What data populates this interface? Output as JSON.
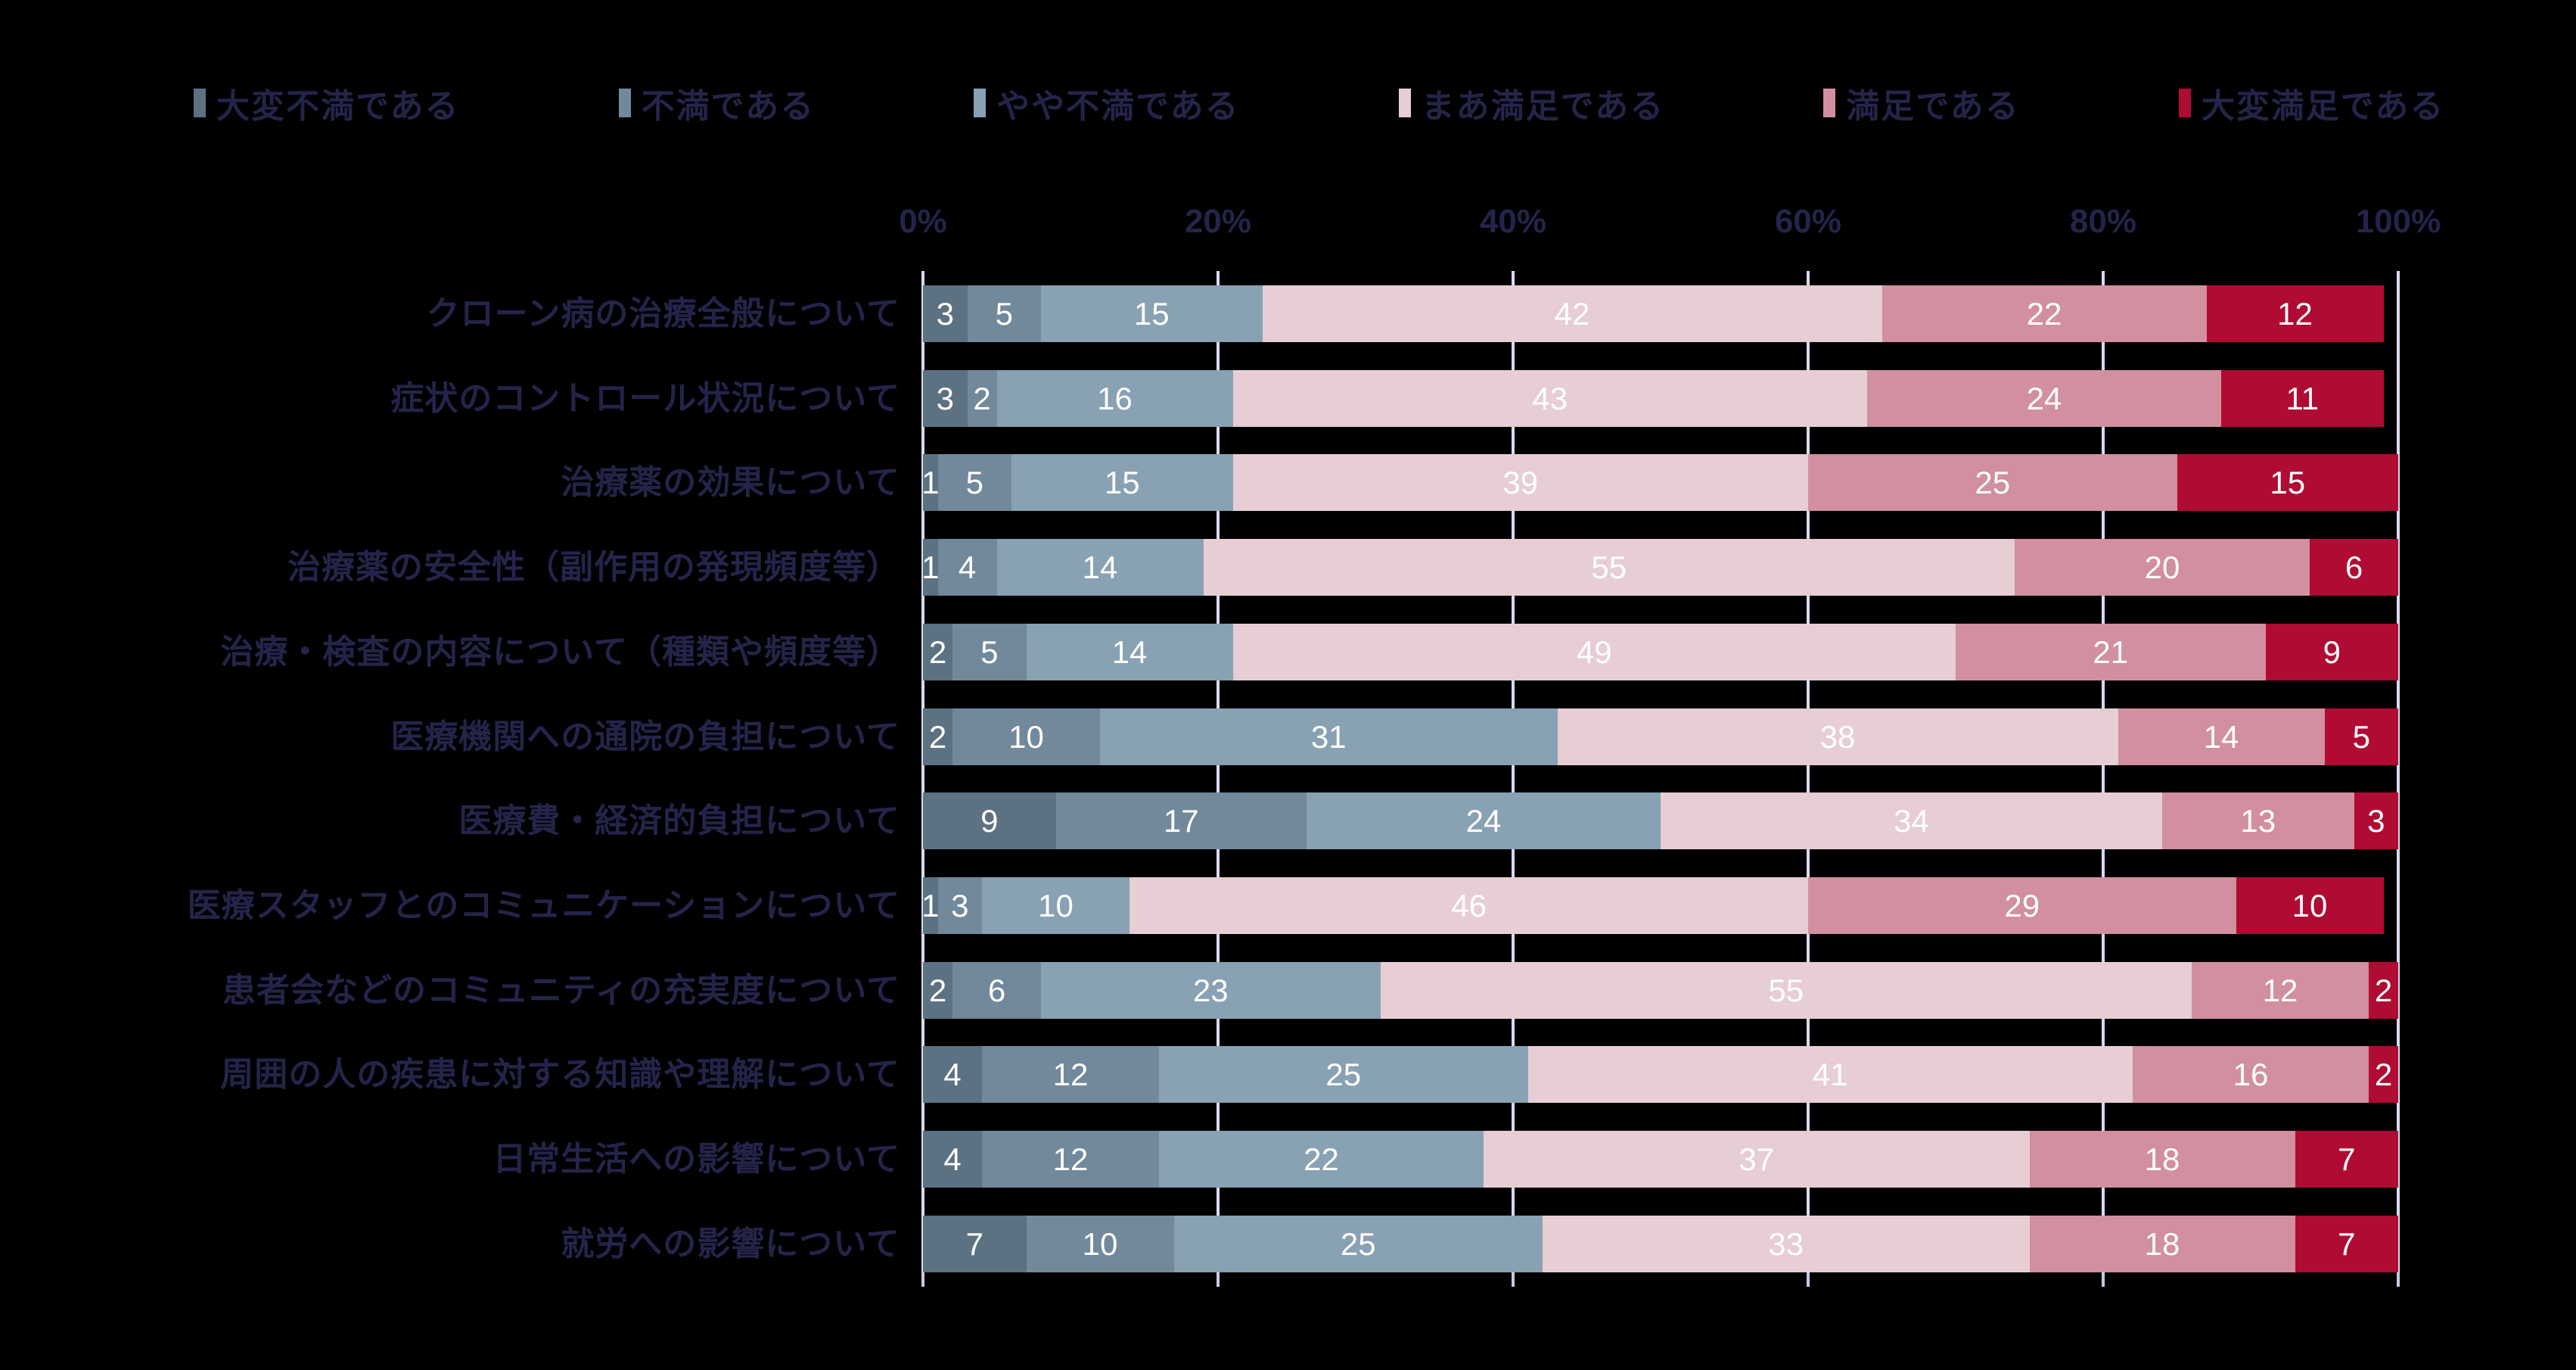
{
  "chart_data": {
    "type": "bar",
    "variant": "horizontal-stacked-100pct",
    "title": "",
    "background_color": "#000000",
    "label_text_color": "#24244a",
    "value_label_color": "#ffffff",
    "grid_color": "#d9d9ef",
    "grid": true,
    "legend_position": "top",
    "x_axis": {
      "ticks": [
        "0%",
        "20%",
        "40%",
        "60%",
        "80%",
        "100%"
      ],
      "range": [
        0,
        100
      ]
    },
    "categories": [
      "クローン病の治療全般について",
      "症状のコントロール状況について",
      "治療薬の効果について",
      "治療薬の安全性（副作用の発現頻度等）",
      "治療・検査の内容について（種類や頻度等）",
      "医療機関への通院の負担について",
      "医療費・経済的負担について",
      "医療スタッフとのコミュニケーションについて",
      "患者会などのコミュニティの充実度について",
      "周囲の人の疾患に対する知識や理解について",
      "日常生活への影響について",
      "就労への影響について"
    ],
    "series": [
      {
        "name": "大変不満である",
        "color": "#5c7181",
        "values": [
          3,
          3,
          1,
          1,
          2,
          2,
          9,
          1,
          2,
          4,
          4,
          7
        ]
      },
      {
        "name": "不満である",
        "color": "#72889b",
        "values": [
          5,
          2,
          5,
          4,
          5,
          10,
          17,
          3,
          6,
          12,
          12,
          10
        ]
      },
      {
        "name": "やや不満である",
        "color": "#88a1b3",
        "values": [
          15,
          16,
          15,
          14,
          14,
          31,
          24,
          10,
          23,
          25,
          22,
          25
        ]
      },
      {
        "name": "まあ満足である",
        "color": "#e6ced4",
        "values": [
          42,
          43,
          39,
          55,
          49,
          38,
          34,
          46,
          55,
          41,
          37,
          33
        ]
      },
      {
        "name": "満足である",
        "color": "#d18fa0",
        "values": [
          22,
          24,
          25,
          20,
          21,
          14,
          13,
          29,
          12,
          16,
          18,
          18
        ]
      },
      {
        "name": "大変満足である",
        "color": "#b00b33",
        "values": [
          12,
          11,
          15,
          6,
          9,
          5,
          3,
          10,
          2,
          2,
          7,
          7
        ]
      }
    ]
  }
}
